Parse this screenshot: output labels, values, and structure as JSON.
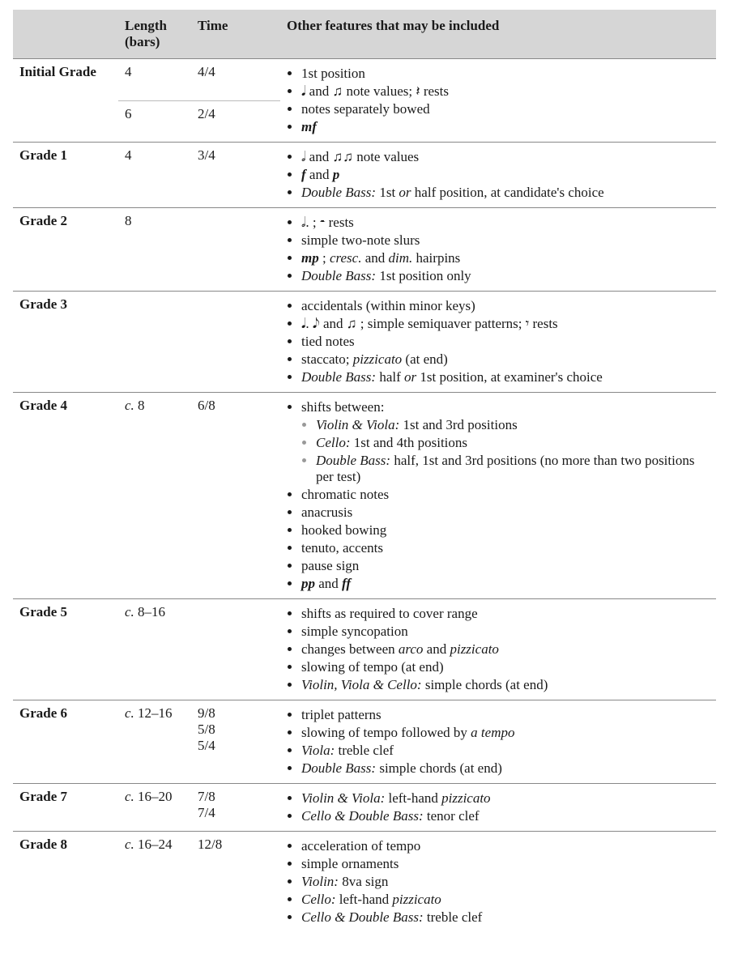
{
  "headers": {
    "grade": "",
    "length": "Length (bars)",
    "time": "Time",
    "features": "Other features that may be included"
  },
  "rows": {
    "initial": {
      "label": "Initial Grade",
      "len1": "4",
      "time1": "4/4",
      "len2": "6",
      "time2": "2/4",
      "f1": "1st position",
      "f2a": "𝅘𝅥 and ",
      "f2b": " note values; 𝄽 rests",
      "f2beam": "♫",
      "f3": "notes separately bowed",
      "f4": "mf"
    },
    "g1": {
      "label": "Grade 1",
      "len": "4",
      "time": "3/4",
      "f1a": "𝅗𝅥 and ",
      "f1b": " note values",
      "f1beam": "♫♫",
      "f2a": "f",
      "f2b": " and ",
      "f2c": "p",
      "f3a": "Double Bass:",
      "f3b": " 1st ",
      "f3c": "or",
      "f3d": " half position, at candidate's choice"
    },
    "g2": {
      "label": "Grade 2",
      "len": "8",
      "time": "",
      "f1": "𝅗𝅥. ; 𝄼 rests",
      "f2": "simple two-note slurs",
      "f3a": "mp",
      "f3b": " ; ",
      "f3c": "cresc.",
      "f3d": " and ",
      "f3e": "dim.",
      "f3f": " hairpins",
      "f4a": "Double Bass:",
      "f4b": " 1st position only"
    },
    "g3": {
      "label": "Grade 3",
      "len": "",
      "time": "",
      "f1": "accidentals (within minor keys)",
      "f2": "𝅘𝅥. 𝅘𝅥𝅮 and ♫ ; simple semiquaver patterns; 𝄾 rests",
      "f3": "tied notes",
      "f4a": "staccato; ",
      "f4b": "pizzicato",
      "f4c": " (at end)",
      "f5a": "Double Bass:",
      "f5b": " half ",
      "f5c": "or",
      "f5d": " 1st position, at examiner's choice"
    },
    "g4": {
      "label": "Grade 4",
      "len_prefix": "c.",
      "len": " 8",
      "time": "6/8",
      "f1": "shifts between:",
      "s1a": "Violin & Viola:",
      "s1b": " 1st and 3rd positions",
      "s2a": "Cello:",
      "s2b": " 1st and 4th positions",
      "s3a": "Double Bass:",
      "s3b": " half, 1st and 3rd positions (no more than two positions per test)",
      "f2": "chromatic notes",
      "f3": "anacrusis",
      "f4": "hooked bowing",
      "f5": "tenuto, accents",
      "f6": "pause sign",
      "f7a": "pp",
      "f7b": " and ",
      "f7c": "ff"
    },
    "g5": {
      "label": "Grade 5",
      "len_prefix": "c.",
      "len": " 8–16",
      "time": "",
      "f1": "shifts as required to cover range",
      "f2": "simple syncopation",
      "f3a": "changes between ",
      "f3b": "arco",
      "f3c": " and ",
      "f3d": "pizzicato",
      "f4": "slowing of tempo (at end)",
      "f5a": "Violin, Viola & Cello:",
      "f5b": " simple chords (at end)"
    },
    "g6": {
      "label": "Grade 6",
      "len_prefix": "c.",
      "len": " 12–16",
      "time1": "9/8",
      "time2": "5/8",
      "time3": "5/4",
      "f1": "triplet patterns",
      "f2a": "slowing of tempo followed by ",
      "f2b": "a tempo",
      "f3a": "Viola:",
      "f3b": " treble clef",
      "f4a": "Double Bass:",
      "f4b": " simple chords (at end)"
    },
    "g7": {
      "label": "Grade 7",
      "len_prefix": "c.",
      "len": " 16–20",
      "time1": "7/8",
      "time2": "7/4",
      "f1a": "Violin & Viola:",
      "f1b": " left-hand ",
      "f1c": "pizzicato",
      "f2a": "Cello & Double Bass:",
      "f2b": " tenor clef"
    },
    "g8": {
      "label": "Grade 8",
      "len_prefix": "c.",
      "len": " 16–24",
      "time": "12/8",
      "f1": "acceleration of tempo",
      "f2": "simple ornaments",
      "f3a": "Violin:",
      "f3b": " 8va sign",
      "f4a": "Cello:",
      "f4b": " left-hand ",
      "f4c": "pizzicato",
      "f5a": "Cello & Double Bass:",
      "f5b": " treble clef"
    }
  }
}
